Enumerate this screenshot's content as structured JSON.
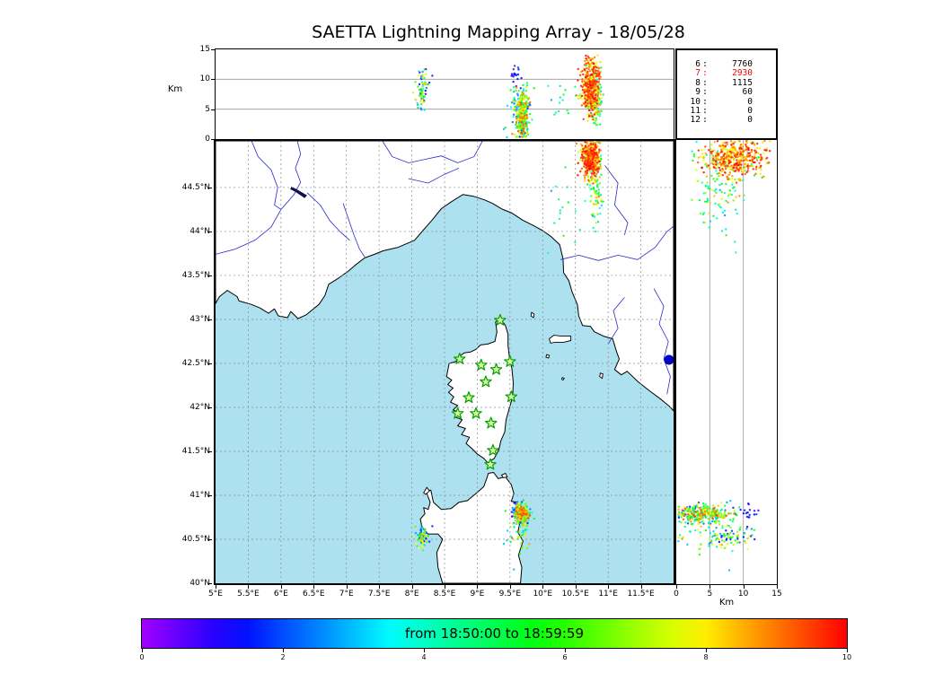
{
  "title": "SAETTA Lightning Mapping Array - 18/05/28",
  "top_panel": {
    "ylabel": "Km",
    "ytick_values": [
      0,
      5,
      10,
      15
    ],
    "ytick_labels": [
      "0",
      "5",
      "10",
      "15"
    ],
    "grid_y": [
      5,
      10
    ]
  },
  "right_panel": {
    "xlabel": "Km",
    "xtick_values": [
      0,
      5,
      10,
      15
    ],
    "xtick_labels": [
      "0",
      "5",
      "10",
      "15"
    ],
    "grid_x": [
      5,
      10
    ]
  },
  "map_axes": {
    "lon_tick_values": [
      5,
      5.5,
      6,
      6.5,
      7,
      7.5,
      8,
      8.5,
      9,
      9.5,
      10,
      10.5,
      11,
      11.5
    ],
    "lon_tick_labels": [
      "5°E",
      "5.5°E",
      "6°E",
      "6.5°E",
      "7°E",
      "7.5°E",
      "8°E",
      "8.5°E",
      "9°E",
      "9.5°E",
      "10°E",
      "10.5°E",
      "11°E",
      "11.5°E"
    ],
    "lat_tick_values": [
      40,
      40.5,
      41,
      41.5,
      42,
      42.5,
      43,
      43.5,
      44,
      44.5
    ],
    "lat_tick_labels": [
      "40°N",
      "40.5°N",
      "41°N",
      "41.5°N",
      "42°N",
      "42.5°N",
      "43°N",
      "43.5°N",
      "44°N",
      "44.5°N"
    ]
  },
  "stats_box": {
    "rows": [
      {
        "k": "6",
        "v": "7760",
        "highlight": false
      },
      {
        "k": "7",
        "v": "2930",
        "highlight": true
      },
      {
        "k": "8",
        "v": "1115",
        "highlight": false
      },
      {
        "k": "9",
        "v": "60",
        "highlight": false
      },
      {
        "k": "10",
        "v": "0",
        "highlight": false
      },
      {
        "k": "11",
        "v": "0",
        "highlight": false
      },
      {
        "k": "12",
        "v": "0",
        "highlight": false
      }
    ]
  },
  "colorbar": {
    "label": "from 18:50:00 to 18:59:59",
    "tick_values": [
      0,
      2,
      4,
      6,
      8,
      10
    ],
    "tick_labels": [
      "0",
      "2",
      "4",
      "6",
      "8",
      "10"
    ],
    "range": [
      0,
      10
    ]
  },
  "colors": {
    "sea": "#aee1f0",
    "land": "#ffffff",
    "coast": "#000000",
    "grid": "#8a8a8a",
    "river": "#2929cc",
    "lake": "#10104a",
    "station_fill": "#d8f7a0",
    "station_stroke": "#00a000",
    "highlight": "#ff0000",
    "blue_marker": "#0000c0"
  },
  "chart_data": {
    "type": "scatter",
    "title": "SAETTA Lightning Mapping Array - 18/05/28",
    "panels": [
      "altitude-vs-longitude",
      "lon-lat map",
      "altitude-vs-latitude"
    ],
    "projection": {
      "lon_range": [
        5,
        12.0
      ],
      "lat_range": [
        40,
        45.03
      ],
      "alt_range_km": [
        0,
        15
      ]
    },
    "time_window": {
      "start": "18:50:00",
      "end": "18:59:59",
      "colorbar_minutes": [
        0,
        10
      ]
    },
    "colormap": {
      "type": "rainbow",
      "hue_start": 278,
      "hue_end": 0
    },
    "stations_lon_lat": [
      [
        9.35,
        42.99
      ],
      [
        8.73,
        42.55
      ],
      [
        9.06,
        42.48
      ],
      [
        9.29,
        42.43
      ],
      [
        9.5,
        42.52
      ],
      [
        9.13,
        42.29
      ],
      [
        8.87,
        42.11
      ],
      [
        9.52,
        42.12
      ],
      [
        8.7,
        41.93
      ],
      [
        8.98,
        41.93
      ],
      [
        9.21,
        41.82
      ],
      [
        9.24,
        41.51
      ],
      [
        9.2,
        41.35
      ]
    ],
    "special_marker": {
      "lon": 11.93,
      "lat": 42.54,
      "color": "#0000c0",
      "radius_px": 5.5
    },
    "clusters": [
      {
        "name": "north-cell-core",
        "seed": 11,
        "n": 430,
        "lon": [
          10.74,
          0.065
        ],
        "lat": [
          44.84,
          0.11
        ],
        "alt": [
          8.6,
          2.4,
          2.5,
          14
        ],
        "t": [
          0.74,
          1.0
        ]
      },
      {
        "name": "north-cell-early",
        "seed": 12,
        "n": 55,
        "lon": [
          10.78,
          0.08
        ],
        "lat": [
          44.7,
          0.13
        ],
        "alt": [
          7.5,
          2.3,
          2,
          13
        ],
        "t": [
          0.35,
          0.7
        ]
      },
      {
        "name": "north-trail",
        "seed": 13,
        "n": 55,
        "lon": [
          10.83,
          0.05
        ],
        "lat": [
          44.38,
          0.17
        ],
        "alt": [
          7.0,
          2.0,
          2,
          11
        ],
        "t": [
          0.3,
          0.95
        ]
      },
      {
        "name": "mid-sparse",
        "seed": 14,
        "n": 18,
        "lon": [
          10.35,
          0.15
        ],
        "lat": [
          44.25,
          0.22
        ],
        "alt": [
          7.0,
          1.8,
          4,
          10
        ],
        "t": [
          0.25,
          0.6
        ]
      },
      {
        "name": "sardinia-core",
        "seed": 15,
        "n": 280,
        "lon": [
          9.68,
          0.05
        ],
        "lat": [
          40.8,
          0.05
        ],
        "alt": [
          4.0,
          2.1,
          0.3,
          9.5
        ],
        "t": [
          0.15,
          0.95
        ]
      },
      {
        "name": "sardinia-high-early",
        "seed": 16,
        "n": 18,
        "lon": [
          9.6,
          0.04
        ],
        "lat": [
          40.82,
          0.05
        ],
        "alt": [
          10.5,
          1.0,
          8.5,
          12.5
        ],
        "t": [
          0.05,
          0.2
        ]
      },
      {
        "name": "sardinia-scatter",
        "seed": 17,
        "n": 70,
        "lon": [
          9.66,
          0.11
        ],
        "lat": [
          40.6,
          0.17
        ],
        "alt": [
          4.5,
          2.5,
          0.3,
          11.5
        ],
        "t": [
          0.2,
          0.9
        ]
      },
      {
        "name": "west-cell",
        "seed": 18,
        "n": 70,
        "lon": [
          8.17,
          0.05
        ],
        "lat": [
          40.52,
          0.06
        ],
        "alt": [
          8.5,
          1.9,
          4.5,
          12.5
        ],
        "t": [
          0.08,
          0.85
        ]
      }
    ]
  },
  "map_geo": {
    "mainland": [
      [
        5.0,
        43.18
      ],
      [
        5.06,
        43.26
      ],
      [
        5.18,
        43.33
      ],
      [
        5.33,
        43.26
      ],
      [
        5.36,
        43.21
      ],
      [
        5.55,
        43.17
      ],
      [
        5.68,
        43.13
      ],
      [
        5.81,
        43.07
      ],
      [
        5.9,
        43.12
      ],
      [
        5.96,
        43.04
      ],
      [
        6.1,
        43.02
      ],
      [
        6.15,
        43.09
      ],
      [
        6.26,
        43.01
      ],
      [
        6.38,
        43.05
      ],
      [
        6.58,
        43.17
      ],
      [
        6.67,
        43.27
      ],
      [
        6.73,
        43.4
      ],
      [
        6.88,
        43.47
      ],
      [
        7.03,
        43.55
      ],
      [
        7.14,
        43.62
      ],
      [
        7.28,
        43.7
      ],
      [
        7.43,
        43.74
      ],
      [
        7.56,
        43.78
      ],
      [
        7.79,
        43.82
      ],
      [
        8.04,
        43.9
      ],
      [
        8.18,
        44.02
      ],
      [
        8.31,
        44.13
      ],
      [
        8.45,
        44.26
      ],
      [
        8.61,
        44.34
      ],
      [
        8.78,
        44.42
      ],
      [
        8.94,
        44.4
      ],
      [
        9.11,
        44.36
      ],
      [
        9.23,
        44.32
      ],
      [
        9.39,
        44.25
      ],
      [
        9.53,
        44.21
      ],
      [
        9.69,
        44.13
      ],
      [
        9.85,
        44.07
      ],
      [
        10.0,
        44.01
      ],
      [
        10.13,
        43.94
      ],
      [
        10.26,
        43.85
      ],
      [
        10.31,
        43.69
      ],
      [
        10.32,
        43.53
      ],
      [
        10.4,
        43.44
      ],
      [
        10.45,
        43.31
      ],
      [
        10.53,
        43.17
      ],
      [
        10.55,
        43.04
      ],
      [
        10.61,
        42.93
      ],
      [
        10.73,
        42.92
      ],
      [
        10.79,
        42.86
      ],
      [
        10.93,
        42.81
      ],
      [
        11.07,
        42.78
      ],
      [
        11.13,
        42.63
      ],
      [
        11.17,
        42.55
      ],
      [
        11.1,
        42.43
      ],
      [
        11.2,
        42.37
      ],
      [
        11.29,
        42.41
      ],
      [
        11.46,
        42.29
      ],
      [
        11.63,
        42.19
      ],
      [
        11.81,
        42.09
      ],
      [
        11.94,
        42.01
      ],
      [
        12.0,
        41.96
      ],
      [
        12.0,
        45.03
      ],
      [
        5.0,
        45.03
      ]
    ],
    "corsica": [
      [
        9.35,
        43.01
      ],
      [
        9.28,
        42.97
      ],
      [
        9.3,
        42.86
      ],
      [
        9.27,
        42.75
      ],
      [
        9.16,
        42.72
      ],
      [
        9.05,
        42.71
      ],
      [
        8.98,
        42.66
      ],
      [
        8.9,
        42.63
      ],
      [
        8.8,
        42.62
      ],
      [
        8.73,
        42.58
      ],
      [
        8.67,
        42.52
      ],
      [
        8.57,
        42.5
      ],
      [
        8.55,
        42.42
      ],
      [
        8.53,
        42.35
      ],
      [
        8.61,
        42.31
      ],
      [
        8.55,
        42.26
      ],
      [
        8.63,
        42.22
      ],
      [
        8.56,
        42.17
      ],
      [
        8.64,
        42.12
      ],
      [
        8.59,
        42.06
      ],
      [
        8.7,
        42.02
      ],
      [
        8.63,
        41.97
      ],
      [
        8.74,
        41.94
      ],
      [
        8.66,
        41.89
      ],
      [
        8.77,
        41.86
      ],
      [
        8.7,
        41.79
      ],
      [
        8.82,
        41.76
      ],
      [
        8.76,
        41.69
      ],
      [
        8.88,
        41.66
      ],
      [
        8.83,
        41.59
      ],
      [
        8.92,
        41.53
      ],
      [
        9.0,
        41.47
      ],
      [
        9.1,
        41.42
      ],
      [
        9.16,
        41.37
      ],
      [
        9.26,
        41.42
      ],
      [
        9.33,
        41.52
      ],
      [
        9.36,
        41.62
      ],
      [
        9.42,
        41.72
      ],
      [
        9.44,
        41.86
      ],
      [
        9.49,
        41.99
      ],
      [
        9.54,
        42.12
      ],
      [
        9.55,
        42.28
      ],
      [
        9.53,
        42.44
      ],
      [
        9.49,
        42.58
      ],
      [
        9.47,
        42.7
      ],
      [
        9.47,
        42.83
      ],
      [
        9.43,
        42.93
      ]
    ],
    "sardinia": [
      [
        8.47,
        40.0
      ],
      [
        8.4,
        40.18
      ],
      [
        8.38,
        40.35
      ],
      [
        8.47,
        40.5
      ],
      [
        8.4,
        40.56
      ],
      [
        8.25,
        40.56
      ],
      [
        8.16,
        40.63
      ],
      [
        8.13,
        40.73
      ],
      [
        8.2,
        40.79
      ],
      [
        8.18,
        40.86
      ],
      [
        8.25,
        40.84
      ],
      [
        8.28,
        40.92
      ],
      [
        8.22,
        41.04
      ],
      [
        8.29,
        41.06
      ],
      [
        8.33,
        40.92
      ],
      [
        8.45,
        40.84
      ],
      [
        8.6,
        40.85
      ],
      [
        8.72,
        40.92
      ],
      [
        8.85,
        40.94
      ],
      [
        8.98,
        41.02
      ],
      [
        9.1,
        41.1
      ],
      [
        9.14,
        41.18
      ],
      [
        9.17,
        41.25
      ],
      [
        9.25,
        41.26
      ],
      [
        9.32,
        41.19
      ],
      [
        9.43,
        41.21
      ],
      [
        9.52,
        41.12
      ],
      [
        9.56,
        41.02
      ],
      [
        9.52,
        40.93
      ],
      [
        9.62,
        40.92
      ],
      [
        9.58,
        40.8
      ],
      [
        9.66,
        40.72
      ],
      [
        9.62,
        40.58
      ],
      [
        9.7,
        40.48
      ],
      [
        9.63,
        40.32
      ],
      [
        9.68,
        40.18
      ],
      [
        9.66,
        40.0
      ]
    ],
    "islands": [
      [
        [
          10.1,
          42.78
        ],
        [
          10.17,
          42.82
        ],
        [
          10.28,
          42.81
        ],
        [
          10.43,
          42.81
        ],
        [
          10.43,
          42.76
        ],
        [
          10.32,
          42.74
        ],
        [
          10.19,
          42.74
        ],
        [
          10.12,
          42.73
        ]
      ],
      [
        [
          9.83,
          43.08
        ],
        [
          9.87,
          43.06
        ],
        [
          9.86,
          43.02
        ],
        [
          9.82,
          43.04
        ]
      ],
      [
        [
          10.88,
          42.39
        ],
        [
          10.92,
          42.38
        ],
        [
          10.91,
          42.33
        ],
        [
          10.87,
          42.35
        ]
      ],
      [
        [
          10.06,
          42.6
        ],
        [
          10.1,
          42.59
        ],
        [
          10.09,
          42.56
        ],
        [
          10.05,
          42.57
        ]
      ],
      [
        [
          10.3,
          42.34
        ],
        [
          10.33,
          42.33
        ],
        [
          10.31,
          42.31
        ],
        [
          10.29,
          42.32
        ]
      ],
      [
        [
          9.37,
          41.23
        ],
        [
          9.43,
          41.25
        ],
        [
          9.46,
          41.21
        ],
        [
          9.4,
          41.2
        ]
      ],
      [
        [
          8.18,
          41.03
        ],
        [
          8.23,
          41.09
        ],
        [
          8.27,
          41.05
        ],
        [
          8.21,
          41.01
        ]
      ]
    ],
    "rivers": [
      [
        [
          5.0,
          43.74
        ],
        [
          5.3,
          43.8
        ],
        [
          5.6,
          43.9
        ],
        [
          5.85,
          44.05
        ],
        [
          6.0,
          44.25
        ],
        [
          6.2,
          44.42
        ],
        [
          6.3,
          44.56
        ],
        [
          6.22,
          44.72
        ],
        [
          6.3,
          44.88
        ],
        [
          6.25,
          45.03
        ]
      ],
      [
        [
          5.55,
          45.03
        ],
        [
          5.65,
          44.85
        ],
        [
          5.85,
          44.7
        ],
        [
          5.95,
          44.5
        ],
        [
          5.9,
          44.3
        ],
        [
          6.0,
          44.25
        ]
      ],
      [
        [
          6.95,
          44.32
        ],
        [
          7.05,
          44.1
        ],
        [
          7.12,
          43.95
        ],
        [
          7.2,
          43.8
        ],
        [
          7.28,
          43.71
        ]
      ],
      [
        [
          7.55,
          45.03
        ],
        [
          7.7,
          44.85
        ],
        [
          7.95,
          44.78
        ],
        [
          8.2,
          44.82
        ],
        [
          8.45,
          44.86
        ],
        [
          8.7,
          44.78
        ],
        [
          8.95,
          44.85
        ],
        [
          9.08,
          45.03
        ]
      ],
      [
        [
          7.95,
          44.6
        ],
        [
          8.25,
          44.55
        ],
        [
          8.5,
          44.65
        ],
        [
          8.72,
          44.72
        ]
      ],
      [
        [
          10.27,
          43.68
        ],
        [
          10.55,
          43.73
        ],
        [
          10.85,
          43.67
        ],
        [
          11.15,
          43.73
        ],
        [
          11.45,
          43.68
        ],
        [
          11.72,
          43.82
        ],
        [
          11.9,
          44.0
        ],
        [
          12.0,
          44.06
        ]
      ],
      [
        [
          11.7,
          43.35
        ],
        [
          11.85,
          43.15
        ],
        [
          11.78,
          42.95
        ],
        [
          11.92,
          42.75
        ],
        [
          11.85,
          42.55
        ],
        [
          11.95,
          42.35
        ],
        [
          11.9,
          42.15
        ]
      ],
      [
        [
          11.0,
          42.72
        ],
        [
          11.15,
          42.9
        ],
        [
          11.08,
          43.1
        ],
        [
          11.25,
          43.25
        ]
      ],
      [
        [
          10.95,
          44.75
        ],
        [
          11.15,
          44.55
        ],
        [
          11.1,
          44.3
        ],
        [
          11.3,
          44.1
        ],
        [
          11.25,
          43.96
        ]
      ],
      [
        [
          6.4,
          44.44
        ],
        [
          6.6,
          44.3
        ],
        [
          6.75,
          44.12
        ],
        [
          6.9,
          44.0
        ],
        [
          7.05,
          43.9
        ]
      ]
    ],
    "lakes": [
      [
        [
          6.16,
          44.51
        ],
        [
          6.24,
          44.48
        ],
        [
          6.4,
          44.41
        ],
        [
          6.36,
          44.38
        ],
        [
          6.22,
          44.45
        ],
        [
          6.14,
          44.48
        ]
      ]
    ]
  }
}
